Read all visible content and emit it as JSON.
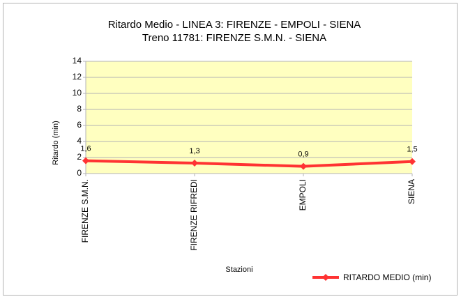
{
  "chart_data": {
    "type": "line",
    "title": "Ritardo Medio - LINEA 3: FIRENZE - EMPOLI - SIENA",
    "subtitle": "Treno 11781: FIRENZE S.M.N. - SIENA",
    "y_label": "Ritardo (min)",
    "x_label": "Stazioni",
    "categories": [
      "FIRENZE S.M.N.",
      "FIRENZE RIFREDI",
      "EMPOLI",
      "SIENA"
    ],
    "series": [
      {
        "name": "RITARDO MEDIO (min)",
        "color": "#ff3333",
        "values": [
          1.6,
          1.3,
          0.9,
          1.5
        ],
        "value_labels": [
          "1,6",
          "1,3",
          "0,9",
          "1,5"
        ]
      }
    ],
    "ylim": [
      0,
      14
    ],
    "yticks": [
      0,
      2,
      4,
      6,
      8,
      10,
      12,
      14
    ],
    "grid": true,
    "plot_background": "#ffffc0",
    "legend": "bottom-right"
  }
}
